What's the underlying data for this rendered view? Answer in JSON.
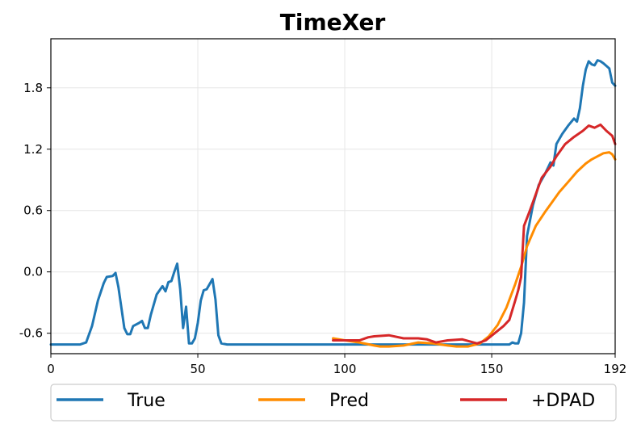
{
  "chart_data": {
    "type": "line",
    "title": "TimeXer",
    "xlabel": "",
    "ylabel": "",
    "xlim": [
      0,
      192
    ],
    "ylim": [
      -0.8,
      2.28
    ],
    "x_ticks": [
      0,
      50,
      100,
      150,
      192
    ],
    "x_tick_labels": [
      "0",
      "50",
      "100",
      "150",
      "192"
    ],
    "y_ticks": [
      -0.6,
      0.0,
      0.6,
      1.2,
      1.8
    ],
    "y_tick_labels": [
      "-0.6",
      "0.0",
      "0.6",
      "1.2",
      "1.8"
    ],
    "grid": true,
    "legend_position": "bottom-outside",
    "series": [
      {
        "name": "True",
        "color": "#1f77b4",
        "points": [
          [
            0,
            -0.71
          ],
          [
            5,
            -0.71
          ],
          [
            10,
            -0.71
          ],
          [
            12,
            -0.69
          ],
          [
            14,
            -0.53
          ],
          [
            16,
            -0.28
          ],
          [
            18,
            -0.11
          ],
          [
            19,
            -0.05
          ],
          [
            21,
            -0.04
          ],
          [
            22,
            -0.01
          ],
          [
            23,
            -0.15
          ],
          [
            25,
            -0.55
          ],
          [
            26,
            -0.61
          ],
          [
            27,
            -0.61
          ],
          [
            28,
            -0.53
          ],
          [
            30,
            -0.5
          ],
          [
            31,
            -0.48
          ],
          [
            32,
            -0.55
          ],
          [
            33,
            -0.55
          ],
          [
            34,
            -0.42
          ],
          [
            36,
            -0.22
          ],
          [
            38,
            -0.14
          ],
          [
            39,
            -0.19
          ],
          [
            40,
            -0.1
          ],
          [
            41,
            -0.09
          ],
          [
            42,
            0.0
          ],
          [
            43,
            0.08
          ],
          [
            44,
            -0.17
          ],
          [
            45,
            -0.55
          ],
          [
            46,
            -0.34
          ],
          [
            47,
            -0.7
          ],
          [
            48,
            -0.7
          ],
          [
            49,
            -0.65
          ],
          [
            50,
            -0.5
          ],
          [
            51,
            -0.28
          ],
          [
            52,
            -0.18
          ],
          [
            53,
            -0.17
          ],
          [
            55,
            -0.07
          ],
          [
            56,
            -0.27
          ],
          [
            57,
            -0.62
          ],
          [
            58,
            -0.7
          ],
          [
            60,
            -0.71
          ],
          [
            100,
            -0.71
          ],
          [
            140,
            -0.71
          ],
          [
            152,
            -0.71
          ],
          [
            156,
            -0.71
          ],
          [
            157,
            -0.69
          ],
          [
            158,
            -0.7
          ],
          [
            159,
            -0.7
          ],
          [
            160,
            -0.6
          ],
          [
            161,
            -0.3
          ],
          [
            162,
            0.35
          ],
          [
            164,
            0.65
          ],
          [
            166,
            0.85
          ],
          [
            168,
            0.95
          ],
          [
            170,
            1.07
          ],
          [
            171,
            1.04
          ],
          [
            172,
            1.25
          ],
          [
            174,
            1.35
          ],
          [
            176,
            1.43
          ],
          [
            178,
            1.5
          ],
          [
            179,
            1.47
          ],
          [
            180,
            1.6
          ],
          [
            181,
            1.82
          ],
          [
            182,
            1.98
          ],
          [
            183,
            2.06
          ],
          [
            184,
            2.03
          ],
          [
            185,
            2.02
          ],
          [
            186,
            2.07
          ],
          [
            187,
            2.06
          ],
          [
            188,
            2.04
          ],
          [
            190,
            1.99
          ],
          [
            191,
            1.85
          ],
          [
            192,
            1.82
          ]
        ]
      },
      {
        "name": "Pred",
        "color": "#ff8c00",
        "points": [
          [
            96,
            -0.65
          ],
          [
            100,
            -0.67
          ],
          [
            105,
            -0.69
          ],
          [
            110,
            -0.72
          ],
          [
            112,
            -0.73
          ],
          [
            115,
            -0.73
          ],
          [
            120,
            -0.72
          ],
          [
            125,
            -0.69
          ],
          [
            130,
            -0.7
          ],
          [
            135,
            -0.72
          ],
          [
            138,
            -0.73
          ],
          [
            142,
            -0.73
          ],
          [
            146,
            -0.7
          ],
          [
            149,
            -0.63
          ],
          [
            152,
            -0.52
          ],
          [
            155,
            -0.35
          ],
          [
            158,
            -0.12
          ],
          [
            160,
            0.05
          ],
          [
            162,
            0.25
          ],
          [
            165,
            0.45
          ],
          [
            168,
            0.58
          ],
          [
            170,
            0.66
          ],
          [
            173,
            0.78
          ],
          [
            176,
            0.88
          ],
          [
            179,
            0.98
          ],
          [
            182,
            1.06
          ],
          [
            184,
            1.1
          ],
          [
            186,
            1.13
          ],
          [
            188,
            1.16
          ],
          [
            190,
            1.17
          ],
          [
            191,
            1.15
          ],
          [
            192,
            1.1
          ]
        ]
      },
      {
        "name": "+DPAD",
        "color": "#d62728",
        "points": [
          [
            96,
            -0.67
          ],
          [
            100,
            -0.67
          ],
          [
            105,
            -0.67
          ],
          [
            108,
            -0.64
          ],
          [
            110,
            -0.63
          ],
          [
            115,
            -0.62
          ],
          [
            120,
            -0.65
          ],
          [
            125,
            -0.65
          ],
          [
            128,
            -0.66
          ],
          [
            131,
            -0.69
          ],
          [
            135,
            -0.67
          ],
          [
            140,
            -0.66
          ],
          [
            145,
            -0.7
          ],
          [
            148,
            -0.67
          ],
          [
            151,
            -0.6
          ],
          [
            154,
            -0.53
          ],
          [
            156,
            -0.47
          ],
          [
            158,
            -0.28
          ],
          [
            159,
            -0.18
          ],
          [
            160,
            -0.05
          ],
          [
            161,
            0.45
          ],
          [
            163,
            0.6
          ],
          [
            165,
            0.76
          ],
          [
            167,
            0.92
          ],
          [
            170,
            1.03
          ],
          [
            172,
            1.13
          ],
          [
            175,
            1.25
          ],
          [
            178,
            1.32
          ],
          [
            181,
            1.38
          ],
          [
            183,
            1.43
          ],
          [
            185,
            1.41
          ],
          [
            187,
            1.44
          ],
          [
            189,
            1.38
          ],
          [
            191,
            1.33
          ],
          [
            192,
            1.25
          ]
        ]
      }
    ]
  }
}
